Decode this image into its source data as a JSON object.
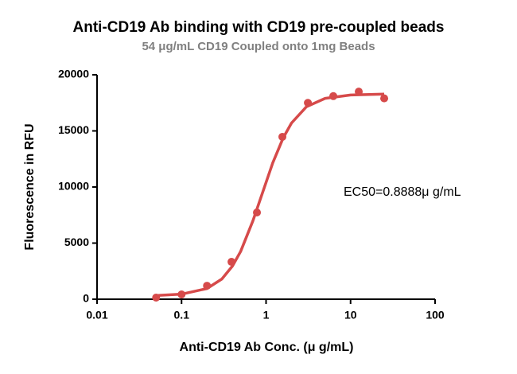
{
  "chart_data": {
    "type": "scatter",
    "title": "Anti-CD19 Ab binding with CD19 pre-coupled beads",
    "subtitle": "54 μg/mL CD19 Coupled onto 1mg Beads",
    "x_label": "Anti-CD19 Ab Conc. (μ g/mL)",
    "y_label": "Fluorescence in RFU",
    "annotation": "EC50=0.8888μ g/mL",
    "x_scale": "log",
    "xlim": [
      0.01,
      100
    ],
    "xticks": [
      0.01,
      0.1,
      1,
      10,
      100
    ],
    "ylim": [
      0,
      20000
    ],
    "yticks": [
      0,
      5000,
      10000,
      15000,
      20000
    ],
    "series": [
      {
        "mode": "markers",
        "color": "#d64a4a",
        "x": [
          0.05,
          0.1,
          0.2,
          0.39,
          0.78,
          1.56,
          3.125,
          6.25,
          12.5,
          25
        ],
        "values": [
          140,
          425,
          1200,
          3330,
          7730,
          14470,
          17500,
          18100,
          18500,
          17900
        ]
      },
      {
        "mode": "line",
        "color": "#d64a4a",
        "x": [
          0.05,
          0.1,
          0.2,
          0.3,
          0.4,
          0.5,
          0.7,
          0.9,
          1.2,
          1.6,
          2,
          3,
          5,
          10,
          25
        ],
        "values": [
          330,
          450,
          950,
          1800,
          2950,
          4250,
          7000,
          9400,
          12150,
          14400,
          15700,
          17150,
          17900,
          18200,
          18280
        ]
      }
    ]
  }
}
